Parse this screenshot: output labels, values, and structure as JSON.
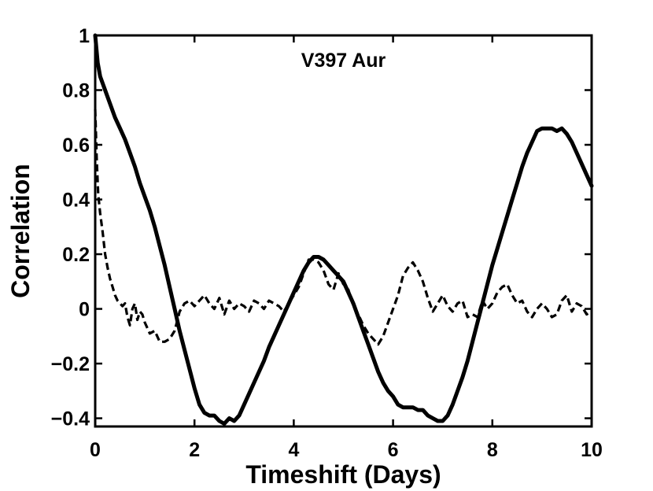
{
  "chart_data": {
    "type": "line",
    "title": "",
    "annotation": "V397 Aur",
    "xlabel": "Timeshift (Days)",
    "ylabel": "Correlation",
    "xlim": [
      0,
      10
    ],
    "ylim": [
      -0.43,
      1.0
    ],
    "xticks": [
      0,
      2,
      4,
      6,
      8,
      10
    ],
    "xtick_labels": [
      "0",
      "2",
      "4",
      "6",
      "8",
      "10"
    ],
    "yticks": [
      -0.4,
      -0.2,
      0,
      0.2,
      0.4,
      0.6,
      0.8,
      1
    ],
    "ytick_labels": [
      "−0.4",
      "−0.2",
      "0",
      "0.2",
      "0.4",
      "0.6",
      "0.8",
      "1"
    ],
    "grid": false,
    "legend": "none",
    "series": [
      {
        "style": "solid",
        "color": "#000000",
        "x": [
          0,
          0.05,
          0.1,
          0.2,
          0.3,
          0.4,
          0.5,
          0.6,
          0.7,
          0.8,
          0.9,
          1.0,
          1.1,
          1.2,
          1.3,
          1.4,
          1.5,
          1.6,
          1.7,
          1.8,
          1.9,
          2.0,
          2.1,
          2.2,
          2.3,
          2.4,
          2.5,
          2.6,
          2.7,
          2.8,
          2.9,
          3.0,
          3.1,
          3.2,
          3.3,
          3.4,
          3.5,
          3.6,
          3.7,
          3.8,
          3.9,
          4.0,
          4.1,
          4.2,
          4.3,
          4.4,
          4.5,
          4.6,
          4.7,
          4.8,
          4.9,
          5.0,
          5.1,
          5.2,
          5.3,
          5.4,
          5.5,
          5.6,
          5.7,
          5.8,
          5.9,
          6.0,
          6.1,
          6.2,
          6.3,
          6.4,
          6.5,
          6.6,
          6.7,
          6.8,
          6.9,
          7.0,
          7.1,
          7.2,
          7.3,
          7.4,
          7.5,
          7.6,
          7.7,
          7.8,
          7.9,
          8.0,
          8.1,
          8.2,
          8.3,
          8.4,
          8.5,
          8.6,
          8.7,
          8.8,
          8.9,
          9.0,
          9.1,
          9.2,
          9.3,
          9.4,
          9.5,
          9.6,
          9.7,
          9.8,
          9.9,
          10.0
        ],
        "y": [
          1.0,
          0.9,
          0.85,
          0.8,
          0.75,
          0.7,
          0.66,
          0.62,
          0.57,
          0.52,
          0.46,
          0.41,
          0.36,
          0.3,
          0.23,
          0.16,
          0.08,
          0.0,
          -0.08,
          -0.15,
          -0.22,
          -0.29,
          -0.35,
          -0.38,
          -0.39,
          -0.39,
          -0.41,
          -0.42,
          -0.4,
          -0.41,
          -0.39,
          -0.35,
          -0.31,
          -0.27,
          -0.23,
          -0.19,
          -0.14,
          -0.1,
          -0.06,
          -0.02,
          0.02,
          0.06,
          0.1,
          0.14,
          0.17,
          0.19,
          0.19,
          0.18,
          0.16,
          0.14,
          0.12,
          0.1,
          0.06,
          0.02,
          -0.03,
          -0.08,
          -0.13,
          -0.18,
          -0.23,
          -0.27,
          -0.3,
          -0.32,
          -0.35,
          -0.36,
          -0.36,
          -0.36,
          -0.37,
          -0.37,
          -0.39,
          -0.4,
          -0.41,
          -0.41,
          -0.39,
          -0.35,
          -0.3,
          -0.25,
          -0.19,
          -0.12,
          -0.05,
          0.02,
          0.09,
          0.16,
          0.22,
          0.28,
          0.34,
          0.4,
          0.46,
          0.52,
          0.57,
          0.61,
          0.65,
          0.66,
          0.66,
          0.66,
          0.65,
          0.66,
          0.64,
          0.61,
          0.57,
          0.53,
          0.49,
          0.45
        ]
      },
      {
        "style": "dashed",
        "color": "#000000",
        "x": [
          0,
          0.03,
          0.06,
          0.1,
          0.15,
          0.2,
          0.25,
          0.3,
          0.35,
          0.4,
          0.45,
          0.5,
          0.55,
          0.6,
          0.65,
          0.7,
          0.75,
          0.8,
          0.85,
          0.9,
          0.95,
          1.0,
          1.1,
          1.2,
          1.3,
          1.4,
          1.5,
          1.6,
          1.7,
          1.8,
          1.9,
          2.0,
          2.1,
          2.2,
          2.3,
          2.4,
          2.5,
          2.6,
          2.7,
          2.8,
          2.9,
          3.0,
          3.1,
          3.2,
          3.3,
          3.4,
          3.5,
          3.6,
          3.7,
          3.8,
          3.9,
          4.0,
          4.1,
          4.2,
          4.3,
          4.4,
          4.5,
          4.6,
          4.7,
          4.8,
          4.9,
          5.0,
          5.1,
          5.2,
          5.3,
          5.4,
          5.5,
          5.6,
          5.7,
          5.8,
          5.9,
          6.0,
          6.1,
          6.2,
          6.3,
          6.4,
          6.5,
          6.6,
          6.7,
          6.8,
          6.9,
          7.0,
          7.1,
          7.2,
          7.3,
          7.4,
          7.5,
          7.6,
          7.7,
          7.8,
          7.9,
          8.0,
          8.1,
          8.2,
          8.3,
          8.4,
          8.5,
          8.6,
          8.7,
          8.8,
          8.9,
          9.0,
          9.1,
          9.2,
          9.3,
          9.4,
          9.5,
          9.6,
          9.7,
          9.8,
          9.9,
          10.0
        ],
        "y": [
          0.73,
          0.55,
          0.42,
          0.35,
          0.28,
          0.2,
          0.15,
          0.11,
          0.08,
          0.05,
          0.03,
          0.02,
          0.01,
          0.02,
          -0.03,
          -0.06,
          0.0,
          0.02,
          -0.04,
          -0.01,
          -0.02,
          -0.05,
          -0.09,
          -0.08,
          -0.12,
          -0.12,
          -0.11,
          -0.08,
          -0.01,
          0.02,
          0.03,
          0.01,
          0.03,
          0.05,
          0.02,
          0.0,
          0.04,
          -0.02,
          0.03,
          0.0,
          0.02,
          0.01,
          -0.01,
          0.03,
          0.02,
          0.0,
          0.03,
          0.02,
          0.01,
          -0.01,
          0.02,
          0.05,
          0.08,
          0.13,
          0.18,
          0.18,
          0.17,
          0.14,
          0.09,
          0.07,
          0.13,
          0.09,
          0.07,
          0.01,
          -0.02,
          -0.06,
          -0.09,
          -0.11,
          -0.13,
          -0.1,
          -0.05,
          0.0,
          0.05,
          0.12,
          0.15,
          0.17,
          0.14,
          0.1,
          0.04,
          -0.01,
          0.02,
          0.05,
          0.01,
          -0.01,
          0.02,
          0.03,
          -0.03,
          -0.02,
          -0.03,
          0.03,
          0.0,
          0.02,
          0.06,
          0.08,
          0.09,
          0.05,
          0.02,
          0.03,
          -0.01,
          -0.03,
          0.0,
          0.02,
          0.0,
          -0.03,
          -0.02,
          0.03,
          0.05,
          -0.01,
          0.02,
          0.01,
          -0.02,
          -0.01
        ]
      }
    ]
  }
}
